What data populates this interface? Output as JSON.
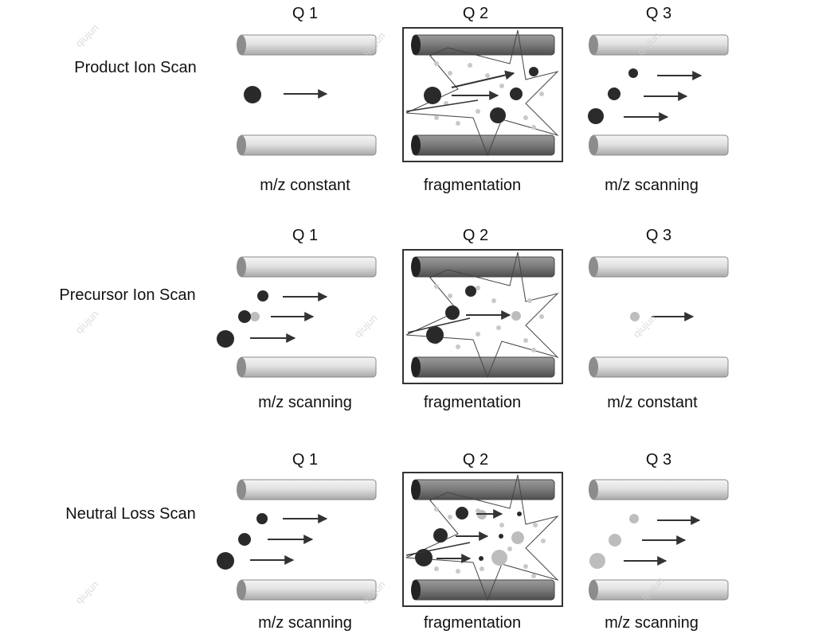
{
  "rows": [
    {
      "scan_label": "Product Ion Scan",
      "quads": [
        {
          "name": "Q 1",
          "caption": "m/z constant"
        },
        {
          "name": "Q 2",
          "caption": "fragmentation"
        },
        {
          "name": "Q 3",
          "caption": "m/z scanning"
        }
      ]
    },
    {
      "scan_label": "Precursor Ion Scan",
      "quads": [
        {
          "name": "Q 1",
          "caption": "m/z scanning"
        },
        {
          "name": "Q 2",
          "caption": "fragmentation"
        },
        {
          "name": "Q 3",
          "caption": "m/z constant"
        }
      ]
    },
    {
      "scan_label": "Neutral Loss Scan",
      "quads": [
        {
          "name": "Q 1",
          "caption": "m/z scanning"
        },
        {
          "name": "Q 2",
          "caption": "fragmentation"
        },
        {
          "name": "Q 3",
          "caption": "m/z scanning"
        }
      ]
    }
  ],
  "watermark": "qiujun",
  "colors": {
    "ion_dark": "#2a2a2a",
    "ion_light": "#b8b8b8",
    "rod": "#d9d9d9",
    "rod_dark": "#7a7a7a",
    "arrow": "#333333"
  }
}
